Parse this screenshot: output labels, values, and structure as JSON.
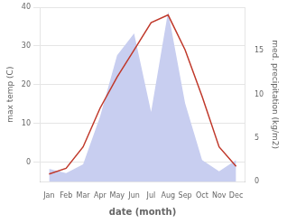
{
  "chart_data": {
    "type": "line",
    "categories": [
      "Jan",
      "Feb",
      "Mar",
      "Apr",
      "May",
      "Jun",
      "Jul",
      "Aug",
      "Sep",
      "Oct",
      "Nov",
      "Dec"
    ],
    "series": [
      {
        "type": "area",
        "color": "#c8cef0",
        "axis": "y2",
        "values": [
          1.5,
          1.0,
          2.0,
          7.5,
          14.5,
          17.0,
          8.0,
          19.5,
          9.0,
          2.5,
          1.2,
          2.5
        ]
      },
      {
        "type": "line",
        "color": "#c0392b",
        "values": [
          -3,
          -1.5,
          4,
          14,
          22,
          29,
          36,
          38,
          29,
          17,
          4,
          -1
        ]
      }
    ],
    "xlabel": "date (month)",
    "ylabel": "max temp (C)",
    "y2label": "med. precipitation (kg/m2)",
    "ylim": [
      -5,
      40
    ],
    "yticks": [
      0,
      10,
      20,
      30,
      40
    ],
    "y2lim": [
      0,
      20
    ],
    "y2ticks": [
      0,
      5,
      10,
      15
    ],
    "grid": true
  }
}
